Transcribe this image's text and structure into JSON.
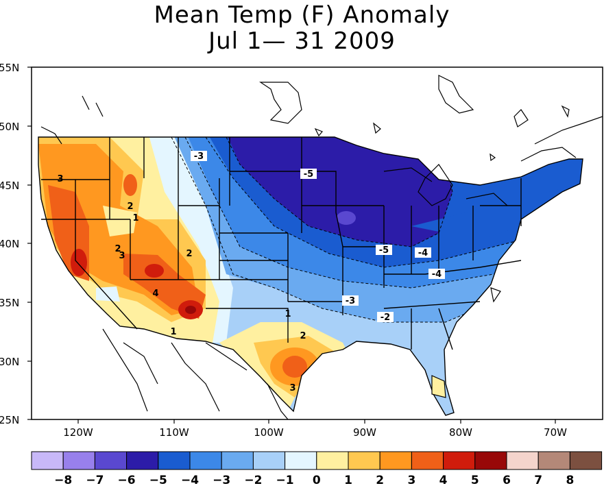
{
  "title_line1": "Mean Temp (F) Anomaly",
  "title_line2": "Jul 1— 31 2009",
  "lat_labels": [
    "55N",
    "50N",
    "45N",
    "40N",
    "35N",
    "30N",
    "25N"
  ],
  "lon_labels": [
    "120W",
    "110W",
    "100W",
    "90W",
    "80W",
    "70W"
  ],
  "colorbar": {
    "ticks": [
      "-8",
      "-7",
      "-6",
      "-5",
      "-4",
      "-3",
      "-2",
      "-1",
      "0",
      "1",
      "2",
      "3",
      "4",
      "5",
      "6",
      "7",
      "8"
    ],
    "colors": [
      "#c8b8f8",
      "#9880ec",
      "#5a48d0",
      "#2c1ca8",
      "#1a5cd0",
      "#3c88e8",
      "#6aaaf0",
      "#a8d0f8",
      "#e4f6ff",
      "#fff0a0",
      "#ffc850",
      "#ff9820",
      "#f06018",
      "#d01c0c",
      "#980808",
      "#f4d4cc",
      "#b48878",
      "#7c5040"
    ]
  },
  "contour_labels": [
    "-3",
    "-5",
    "-5",
    "-4",
    "-4",
    "-3",
    "-2",
    "3",
    "2",
    "1",
    "2",
    "3",
    "4",
    "2",
    "1",
    "1",
    "2",
    "3"
  ]
}
